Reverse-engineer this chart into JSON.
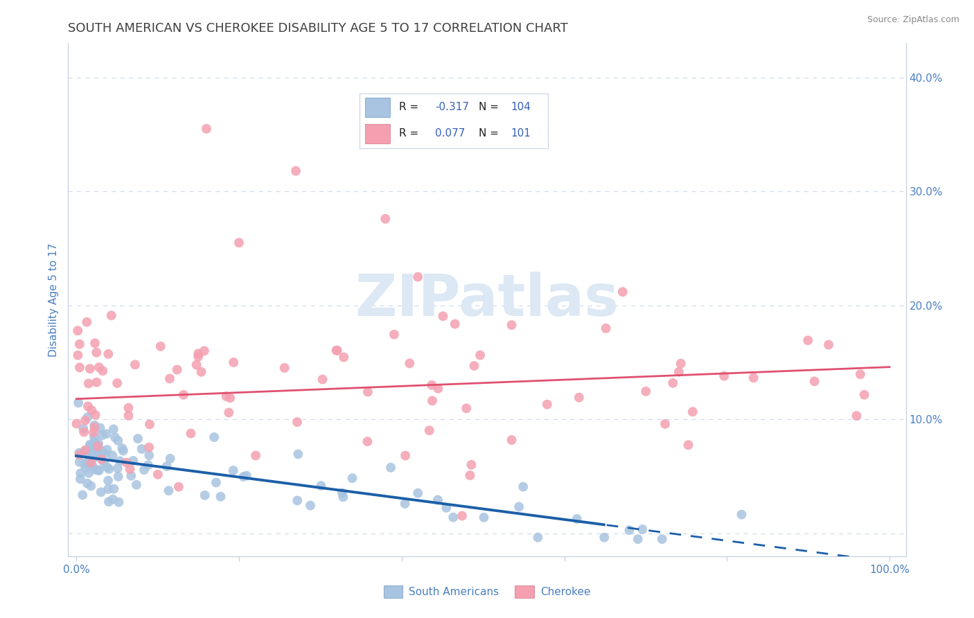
{
  "title": "SOUTH AMERICAN VS CHEROKEE DISABILITY AGE 5 TO 17 CORRELATION CHART",
  "source": "Source: ZipAtlas.com",
  "ylabel": "Disability Age 5 to 17",
  "xlim": [
    -0.01,
    1.02
  ],
  "ylim": [
    -0.02,
    0.43
  ],
  "blue_R": -0.317,
  "blue_N": 104,
  "pink_R": 0.077,
  "pink_N": 101,
  "blue_color": "#a8c4e0",
  "pink_color": "#f4a0b0",
  "blue_line_color": "#1b5fa8",
  "pink_line_color": "#e05070",
  "title_color": "#404040",
  "axis_color": "#4a7fc1",
  "grid_color": "#d0dcec",
  "legend_text_color": "#3860b8",
  "watermark_color": "#dce8f4"
}
